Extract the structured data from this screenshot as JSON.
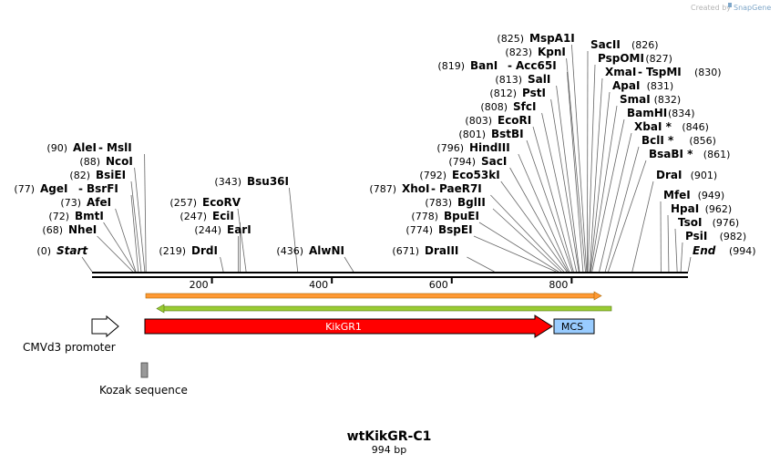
{
  "credit": {
    "prefix": "Created by",
    "brand": "SnapGene"
  },
  "map": {
    "title": "wtKikGR-C1",
    "length_label": "994 bp",
    "length": 994
  },
  "ticks": [
    {
      "pos": 200,
      "label": "200"
    },
    {
      "pos": 400,
      "label": "400"
    },
    {
      "pos": 600,
      "label": "600"
    },
    {
      "pos": 800,
      "label": "800"
    }
  ],
  "sites": [
    {
      "pos": 0,
      "pos_label": "(0)",
      "name": "Start",
      "italic": true
    },
    {
      "pos": 68,
      "pos_label": "(68)",
      "name": "NheI"
    },
    {
      "pos": 72,
      "pos_label": "(72)",
      "name": "BmtI"
    },
    {
      "pos": 73,
      "pos_label": "(73)",
      "name": "AfeI"
    },
    {
      "pos": 77,
      "pos_label": "(77)",
      "name": "AgeI",
      "name2": "BsrFI"
    },
    {
      "pos": 82,
      "pos_label": "(82)",
      "name": "BsiEI"
    },
    {
      "pos": 88,
      "pos_label": "(88)",
      "name": "NcoI"
    },
    {
      "pos": 90,
      "pos_label": "(90)",
      "name": "AleI",
      "name2": "MslI"
    },
    {
      "pos": 219,
      "pos_label": "(219)",
      "name": "DrdI"
    },
    {
      "pos": 244,
      "pos_label": "(244)",
      "name": "EarI"
    },
    {
      "pos": 247,
      "pos_label": "(247)",
      "name": "EciI"
    },
    {
      "pos": 257,
      "pos_label": "(257)",
      "name": "EcoRV"
    },
    {
      "pos": 343,
      "pos_label": "(343)",
      "name": "Bsu36I"
    },
    {
      "pos": 436,
      "pos_label": "(436)",
      "name": "AlwNI"
    },
    {
      "pos": 671,
      "pos_label": "(671)",
      "name": "DraIII"
    },
    {
      "pos": 774,
      "pos_label": "(774)",
      "name": "BspEI"
    },
    {
      "pos": 778,
      "pos_label": "(778)",
      "name": "BpuEI"
    },
    {
      "pos": 783,
      "pos_label": "(783)",
      "name": "BglII"
    },
    {
      "pos": 787,
      "pos_label": "(787)",
      "name": "XhoI",
      "name2": "PaeR7I"
    },
    {
      "pos": 792,
      "pos_label": "(792)",
      "name": "Eco53kI"
    },
    {
      "pos": 794,
      "pos_label": "(794)",
      "name": "SacI"
    },
    {
      "pos": 796,
      "pos_label": "(796)",
      "name": "HindIII"
    },
    {
      "pos": 801,
      "pos_label": "(801)",
      "name": "BstBI"
    },
    {
      "pos": 803,
      "pos_label": "(803)",
      "name": "EcoRI"
    },
    {
      "pos": 808,
      "pos_label": "(808)",
      "name": "SfcI"
    },
    {
      "pos": 812,
      "pos_label": "(812)",
      "name": "PstI"
    },
    {
      "pos": 813,
      "pos_label": "(813)",
      "name": "SalI"
    },
    {
      "pos": 819,
      "pos_label": "(819)",
      "name": "BanI",
      "name2": "Acc65I"
    },
    {
      "pos": 823,
      "pos_label": "(823)",
      "name": "KpnI"
    },
    {
      "pos": 825,
      "pos_label": "(825)",
      "name": "MspA1I"
    },
    {
      "pos": 826,
      "pos_label": "(826)",
      "name": "SacII"
    },
    {
      "pos": 827,
      "pos_label": "(827)",
      "name": "PspOMI"
    },
    {
      "pos": 830,
      "pos_label": "(830)",
      "name": "XmaI",
      "name2": "TspMI"
    },
    {
      "pos": 831,
      "pos_label": "(831)",
      "name": "ApaI"
    },
    {
      "pos": 832,
      "pos_label": "(832)",
      "name": "SmaI"
    },
    {
      "pos": 834,
      "pos_label": "(834)",
      "name": "BamHI"
    },
    {
      "pos": 846,
      "pos_label": "(846)",
      "name": "XbaI *"
    },
    {
      "pos": 856,
      "pos_label": "(856)",
      "name": "BclI *"
    },
    {
      "pos": 861,
      "pos_label": "(861)",
      "name": "BsaBI *"
    },
    {
      "pos": 901,
      "pos_label": "(901)",
      "name": "DraI"
    },
    {
      "pos": 949,
      "pos_label": "(949)",
      "name": "MfeI"
    },
    {
      "pos": 962,
      "pos_label": "(962)",
      "name": "HpaI"
    },
    {
      "pos": 976,
      "pos_label": "(976)",
      "name": "TsoI"
    },
    {
      "pos": 982,
      "pos_label": "(982)",
      "name": "PsiI"
    },
    {
      "pos": 994,
      "pos_label": "(994)",
      "name": "End",
      "italic": true
    }
  ],
  "features": {
    "promoter": {
      "label": "CMVd3 promoter",
      "color": "#ffffff"
    },
    "kikgr1": {
      "label": "KikGR1",
      "color": "#ff0000"
    },
    "mcs": {
      "label": "MCS",
      "color": "#99ccff"
    },
    "kozak": {
      "label": "Kozak sequence",
      "color": "#999999"
    },
    "orf_forward": {
      "color": "#ff9933"
    },
    "orf_reverse": {
      "color": "#99cc33"
    }
  }
}
